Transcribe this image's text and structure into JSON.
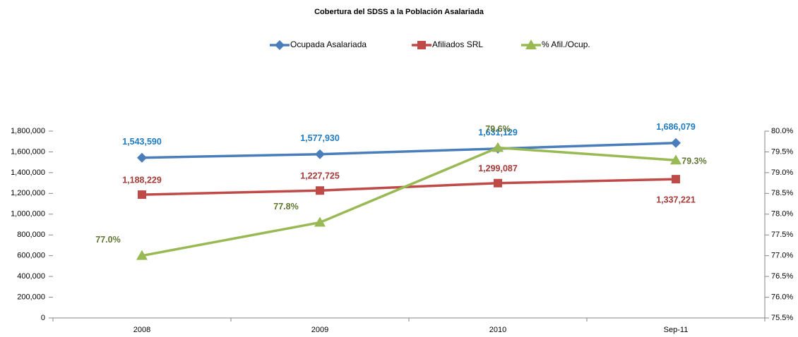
{
  "chart_data": {
    "type": "line",
    "title": "Cobertura del SDSS a la Población Asalariada",
    "categories": [
      "2008",
      "2009",
      "2010",
      "Sep-11"
    ],
    "series": [
      {
        "name": "Ocupada Asalariada",
        "color": "#4a7ebb",
        "marker": "diamond",
        "values": [
          1543590,
          1577930,
          1631129,
          1686079
        ],
        "value_labels": [
          "1,543,590",
          "1,577,930",
          "1,631,129",
          "1,686,079"
        ],
        "label_color": "#1f7bc1"
      },
      {
        "name": "Afiliados SRL",
        "color": "#be4b48",
        "marker": "square",
        "values": [
          1188229,
          1227725,
          1299087,
          1337221
        ],
        "value_labels": [
          "1,188,229",
          "1,227,725",
          "1,299,087",
          "1,337,221"
        ],
        "label_color": "#a43b38"
      },
      {
        "name": "% Afil./Ocup.",
        "color": "#98b954",
        "marker": "triangle",
        "axis": "y2",
        "values": [
          77.0,
          77.8,
          79.6,
          79.3
        ],
        "value_labels": [
          "77.0%",
          "77.8%",
          "79.6%",
          "79.3%"
        ],
        "label_color": "#5f7530"
      }
    ],
    "ylim": [
      0,
      1800000
    ],
    "yticks": [
      0,
      {
        "value": 200000,
        "label": "200,000"
      },
      {
        "value": 400000,
        "label": "400,000"
      },
      {
        "value": 600000,
        "label": "600,000"
      },
      {
        "value": 800000,
        "label": "800,000"
      },
      {
        "value": 1000000,
        "label": "1,000,000"
      },
      {
        "value": 1200000,
        "label": "1,200,000"
      },
      {
        "value": 1400000,
        "label": "1,400,000"
      },
      {
        "value": 1600000,
        "label": "1,600,000"
      },
      {
        "value": 1800000,
        "label": "1,800,000"
      }
    ],
    "y2lim": [
      75.5,
      80
    ],
    "y2ticks": [
      {
        "value": 75.5,
        "label": "75.5%"
      },
      {
        "value": 76,
        "label": "76.0%"
      },
      {
        "value": 76.5,
        "label": "76.5%"
      },
      {
        "value": 77,
        "label": "77.0%"
      },
      {
        "value": 77.5,
        "label": "77.5%"
      },
      {
        "value": 78,
        "label": "78.0%"
      },
      {
        "value": 78.5,
        "label": "78.5%"
      },
      {
        "value": 79,
        "label": "79.0%"
      },
      {
        "value": 79.5,
        "label": "79.5%"
      },
      {
        "value": 80,
        "label": "80.0%"
      }
    ],
    "legend": "top",
    "grid": false
  }
}
